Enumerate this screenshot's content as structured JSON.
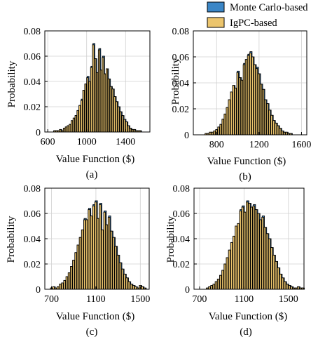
{
  "colors": {
    "monte_carlo": "#3b86c6",
    "igpc": "#ecc56d",
    "bar_edge": "#000000"
  },
  "legend": {
    "entries": [
      "Monte Carlo-based",
      "IgPC-based"
    ]
  },
  "chart_data": [
    {
      "type": "bar",
      "caption": "(a)",
      "xlabel": "Value Function ($)",
      "ylabel": "Probability",
      "xlim": [
        570,
        1650
      ],
      "ylim": [
        0,
        0.08
      ],
      "xticks": [
        600,
        1000,
        1400
      ],
      "yticks": [
        0,
        0.02,
        0.04,
        0.06,
        0.08
      ],
      "ytick_labels": [
        "0",
        "0.02",
        "0.04",
        "0.06",
        "0.08"
      ],
      "bin_start": 660,
      "bin_width": 20,
      "series": [
        {
          "name": "Monte Carlo-based",
          "values": [
            0.001,
            0.001,
            0.001,
            0.002,
            0.001,
            0.003,
            0.004,
            0.005,
            0.006,
            0.009,
            0.011,
            0.013,
            0.017,
            0.021,
            0.026,
            0.033,
            0.038,
            0.044,
            0.04,
            0.052,
            0.07,
            0.058,
            0.047,
            0.066,
            0.049,
            0.06,
            0.046,
            0.05,
            0.042,
            0.036,
            0.034,
            0.028,
            0.024,
            0.02,
            0.016,
            0.013,
            0.01,
            0.008,
            0.005,
            0.003,
            0.002,
            0.002,
            0.001,
            0.001,
            0.001
          ]
        },
        {
          "name": "IgPC-based",
          "values": [
            0.001,
            0.001,
            0.001,
            0.002,
            0.001,
            0.003,
            0.004,
            0.005,
            0.006,
            0.009,
            0.011,
            0.013,
            0.017,
            0.021,
            0.025,
            0.033,
            0.038,
            0.043,
            0.04,
            0.051,
            0.069,
            0.058,
            0.047,
            0.065,
            0.049,
            0.059,
            0.046,
            0.05,
            0.042,
            0.036,
            0.034,
            0.028,
            0.024,
            0.02,
            0.016,
            0.013,
            0.01,
            0.008,
            0.005,
            0.003,
            0.002,
            0.002,
            0.001,
            0.001,
            0.001
          ]
        }
      ]
    },
    {
      "type": "bar",
      "caption": "(b)",
      "xlabel": "Value Function ($)",
      "ylabel": "Probability",
      "xlim": [
        580,
        1650
      ],
      "ylim": [
        0,
        0.08
      ],
      "xticks": [
        800,
        1200,
        1600
      ],
      "yticks": [
        0,
        0.02,
        0.04,
        0.06,
        0.08
      ],
      "ytick_labels": [
        "0",
        "0.02",
        "0.04",
        "0.06",
        "0.08"
      ],
      "bin_start": 690,
      "bin_width": 20,
      "series": [
        {
          "name": "Monte Carlo-based",
          "values": [
            0.001,
            0.001,
            0.002,
            0.002,
            0.003,
            0.004,
            0.006,
            0.008,
            0.012,
            0.016,
            0.021,
            0.027,
            0.033,
            0.038,
            0.036,
            0.049,
            0.044,
            0.042,
            0.055,
            0.058,
            0.062,
            0.064,
            0.06,
            0.054,
            0.052,
            0.047,
            0.039,
            0.035,
            0.027,
            0.024,
            0.019,
            0.015,
            0.011,
            0.009,
            0.007,
            0.005,
            0.003,
            0.002,
            0.002,
            0.001,
            0.001
          ]
        },
        {
          "name": "IgPC-based",
          "values": [
            0.001,
            0.001,
            0.002,
            0.002,
            0.003,
            0.004,
            0.006,
            0.008,
            0.012,
            0.016,
            0.021,
            0.027,
            0.033,
            0.038,
            0.036,
            0.048,
            0.044,
            0.042,
            0.054,
            0.058,
            0.061,
            0.063,
            0.06,
            0.054,
            0.051,
            0.047,
            0.039,
            0.035,
            0.027,
            0.024,
            0.019,
            0.015,
            0.011,
            0.009,
            0.007,
            0.005,
            0.003,
            0.002,
            0.002,
            0.001,
            0.001
          ]
        }
      ]
    },
    {
      "type": "bar",
      "caption": "(c)",
      "xlabel": "Value Function ($)",
      "ylabel": "Probability",
      "xlim": [
        640,
        1580
      ],
      "ylim": [
        0,
        0.08
      ],
      "xticks": [
        700,
        1100,
        1500
      ],
      "yticks": [
        0,
        0.02,
        0.04,
        0.06,
        0.08
      ],
      "ytick_labels": [
        "0",
        "0.02",
        "0.04",
        "0.06",
        "0.08"
      ],
      "bin_start": 690,
      "bin_width": 20,
      "series": [
        {
          "name": "Monte Carlo-based",
          "values": [
            0.001,
            0.002,
            0.001,
            0.002,
            0.004,
            0.005,
            0.007,
            0.01,
            0.013,
            0.018,
            0.023,
            0.029,
            0.035,
            0.041,
            0.047,
            0.056,
            0.055,
            0.064,
            0.058,
            0.067,
            0.07,
            0.056,
            0.068,
            0.047,
            0.062,
            0.051,
            0.058,
            0.046,
            0.041,
            0.034,
            0.027,
            0.021,
            0.016,
            0.012,
            0.009,
            0.006,
            0.004,
            0.003,
            0.002,
            0.001,
            0.003,
            0.002,
            0.001
          ]
        },
        {
          "name": "IgPC-based",
          "values": [
            0.001,
            0.002,
            0.001,
            0.002,
            0.004,
            0.005,
            0.007,
            0.01,
            0.013,
            0.018,
            0.023,
            0.029,
            0.035,
            0.041,
            0.047,
            0.055,
            0.055,
            0.063,
            0.058,
            0.066,
            0.069,
            0.056,
            0.067,
            0.047,
            0.061,
            0.051,
            0.057,
            0.046,
            0.041,
            0.034,
            0.027,
            0.021,
            0.016,
            0.012,
            0.009,
            0.006,
            0.004,
            0.003,
            0.002,
            0.001,
            0.003,
            0.002,
            0.001
          ]
        }
      ]
    },
    {
      "type": "bar",
      "caption": "(d)",
      "xlabel": "Value Function ($)",
      "ylabel": "Probability",
      "xlim": [
        650,
        1640
      ],
      "ylim": [
        0,
        0.08
      ],
      "xticks": [
        700,
        1100,
        1500
      ],
      "yticks": [
        0,
        0.02,
        0.04,
        0.06,
        0.08
      ],
      "ytick_labels": [
        "0",
        "0.02",
        "0.04",
        "0.06",
        "0.08"
      ],
      "bin_start": 760,
      "bin_width": 20,
      "series": [
        {
          "name": "Monte Carlo-based",
          "values": [
            0.001,
            0.002,
            0.003,
            0.004,
            0.006,
            0.008,
            0.011,
            0.015,
            0.02,
            0.025,
            0.031,
            0.037,
            0.042,
            0.05,
            0.052,
            0.063,
            0.066,
            0.061,
            0.07,
            0.068,
            0.065,
            0.067,
            0.063,
            0.06,
            0.055,
            0.058,
            0.049,
            0.044,
            0.04,
            0.033,
            0.027,
            0.022,
            0.017,
            0.012,
            0.009,
            0.006,
            0.004,
            0.003,
            0.002,
            0.001,
            0.001,
            0.002,
            0.001,
            0.001
          ]
        },
        {
          "name": "IgPC-based",
          "values": [
            0.001,
            0.002,
            0.003,
            0.004,
            0.006,
            0.008,
            0.011,
            0.015,
            0.02,
            0.025,
            0.031,
            0.037,
            0.042,
            0.05,
            0.052,
            0.062,
            0.065,
            0.061,
            0.069,
            0.068,
            0.065,
            0.066,
            0.063,
            0.06,
            0.055,
            0.057,
            0.049,
            0.044,
            0.04,
            0.033,
            0.027,
            0.022,
            0.017,
            0.012,
            0.009,
            0.006,
            0.004,
            0.003,
            0.002,
            0.001,
            0.001,
            0.002,
            0.001,
            0.001
          ]
        }
      ]
    }
  ]
}
